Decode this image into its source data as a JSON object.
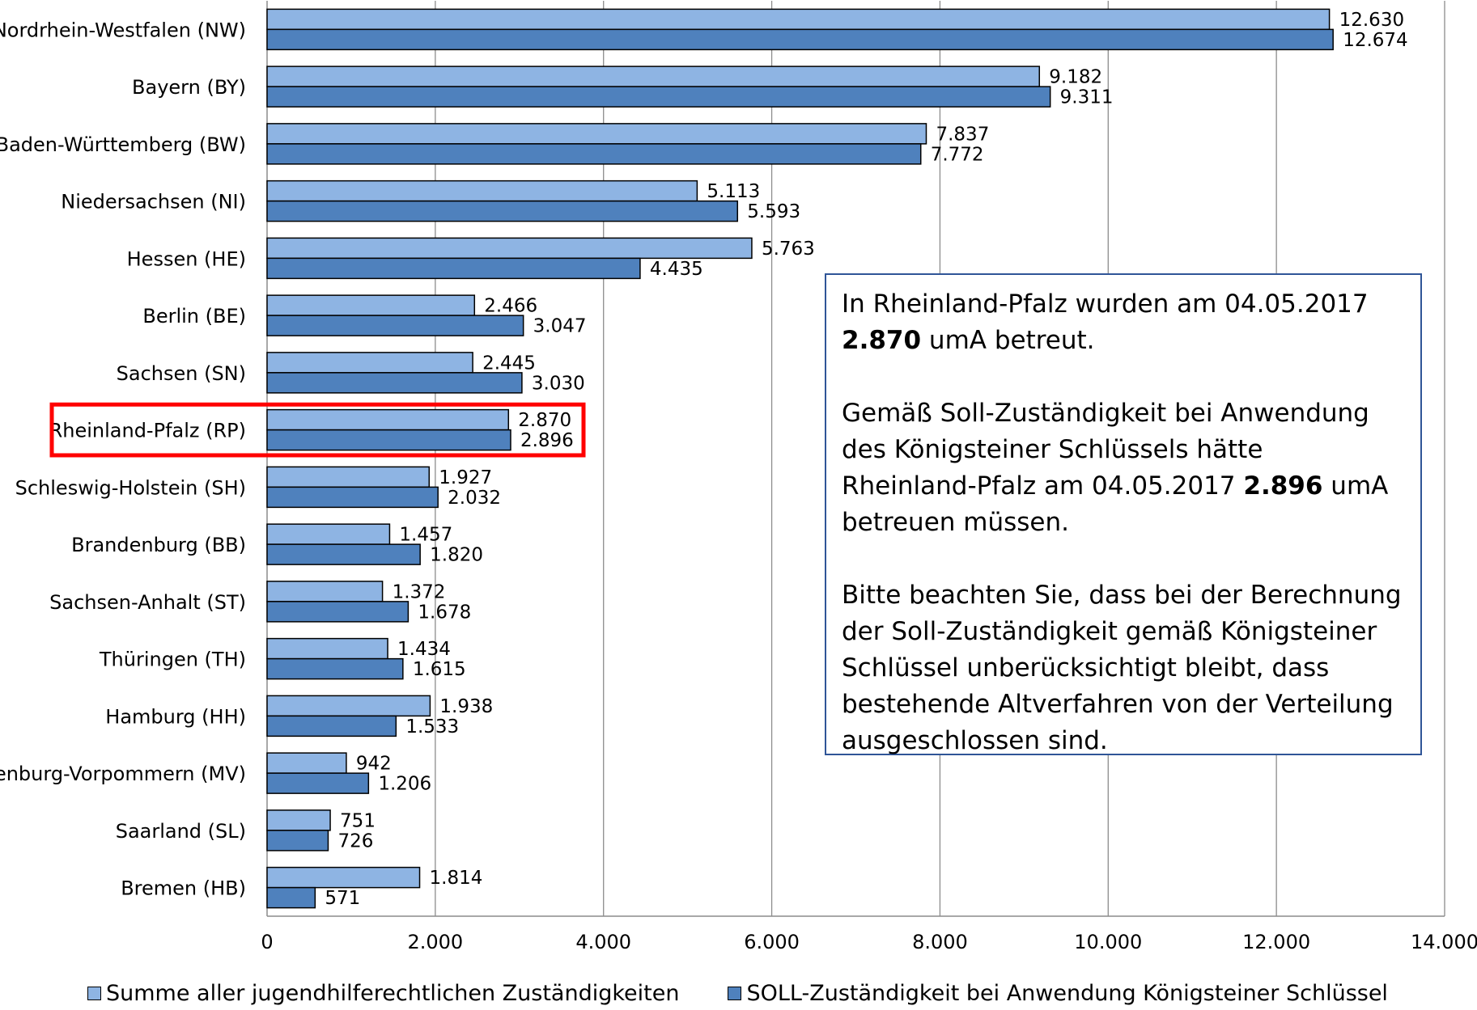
{
  "chart_data": {
    "type": "bar",
    "orientation": "horizontal",
    "categories": [
      "Nordrhein-Westfalen (NW)",
      "Bayern (BY)",
      "Baden-Württemberg (BW)",
      "Niedersachsen (NI)",
      "Hessen (HE)",
      "Berlin (BE)",
      "Sachsen (SN)",
      "Rheinland-Pfalz (RP)",
      "Schleswig-Holstein (SH)",
      "Brandenburg (BB)",
      "Sachsen-Anhalt (ST)",
      "Thüringen (TH)",
      "Hamburg (HH)",
      "Mecklenburg-Vorpommern (MV)",
      "Saarland (SL)",
      "Bremen (HB)"
    ],
    "series": [
      {
        "name": "Summe aller jugendhilferechtlichen Zuständigkeiten",
        "color": "#8eb4e3",
        "values": [
          12630,
          9182,
          7837,
          5113,
          5763,
          2466,
          2445,
          2870,
          1927,
          1457,
          1372,
          1434,
          1938,
          942,
          751,
          1814
        ],
        "labels": [
          "12.630",
          "9.182",
          "7.837",
          "5.113",
          "5.763",
          "2.466",
          "2.445",
          "2.870",
          "1.927",
          "1.457",
          "1.372",
          "1.434",
          "1.938",
          "942",
          "751",
          "1.814"
        ]
      },
      {
        "name": "SOLL-Zuständigkeit bei Anwendung Königsteiner Schlüssel",
        "color": "#4f81bd",
        "values": [
          12674,
          9311,
          7772,
          5593,
          4435,
          3047,
          3030,
          2896,
          2032,
          1820,
          1678,
          1615,
          1533,
          1206,
          726,
          571
        ],
        "labels": [
          "12.674",
          "9.311",
          "7.772",
          "5.593",
          "4.435",
          "3.047",
          "3.030",
          "2.896",
          "2.032",
          "1.820",
          "1.678",
          "1.615",
          "1.533",
          "1.206",
          "726",
          "571"
        ]
      }
    ],
    "xlim": [
      0,
      14000
    ],
    "xticks": [
      0,
      2000,
      4000,
      6000,
      8000,
      10000,
      12000,
      14000
    ],
    "xtick_labels": [
      "0",
      "2.000",
      "4.000",
      "6.000",
      "8.000",
      "10.000",
      "12.000",
      "14.000"
    ],
    "grid": "vertical",
    "legend_position": "bottom",
    "highlighted_category": "Rheinland-Pfalz (RP)",
    "highlight_color": "#ff0000"
  },
  "note": {
    "p1_a": "In Rheinland-Pfalz wurden am 04.05.2017",
    "p1_bold": "2.870",
    "p1_b": " umA betreut.",
    "p2_a": "Gemäß Soll-Zuständigkeit bei Anwendung des Königsteiner Schlüssels hätte Rheinland-Pfalz am 04.05.2017 ",
    "p2_bold": "2.896",
    "p2_b": " umA betreuen müssen.",
    "p3": "Bitte beachten Sie, dass bei der Berechnung der Soll-Zuständigkeit gemäß Königsteiner Schlüssel unberücksichtigt bleibt, dass bestehende Altverfahren von der Verteilung ausgeschlossen sind.",
    "border_color": "#2f5597"
  }
}
